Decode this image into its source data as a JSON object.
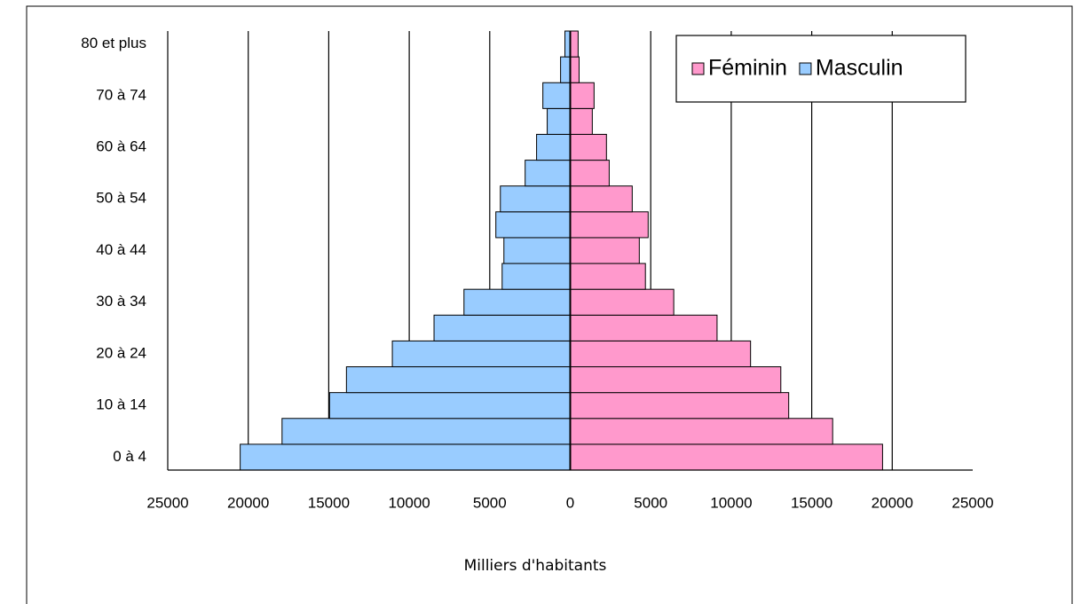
{
  "chart_data": {
    "type": "pyramid",
    "categories": [
      "0 à 4",
      null,
      "10 à 14",
      null,
      "20 à 24",
      null,
      "30 à 34",
      null,
      "40 à 44",
      null,
      "50 à 54",
      null,
      "60 à 64",
      null,
      "70 à 74",
      null,
      "80 et plus"
    ],
    "series": [
      {
        "name": "Féminin",
        "color": "#ff99cc",
        "values": [
          19400,
          16300,
          13570,
          13080,
          11200,
          9120,
          6430,
          4670,
          4290,
          4840,
          3850,
          2420,
          2250,
          1370,
          1480,
          550,
          490
        ]
      },
      {
        "name": "Masculin",
        "color": "#99ccff",
        "values": [
          -20500,
          -17900,
          -14950,
          -13900,
          -11050,
          -8460,
          -6600,
          -4230,
          -4120,
          -4620,
          -4340,
          -2800,
          -2090,
          -1430,
          -1700,
          -600,
          -330
        ]
      }
    ],
    "xlabel": "Milliers d'habitants",
    "xlim": [
      -25000,
      25000
    ],
    "xticks": [
      {
        "value": -25000,
        "label": "25000"
      },
      {
        "value": -20000,
        "label": "20000"
      },
      {
        "value": -15000,
        "label": "15000"
      },
      {
        "value": -10000,
        "label": "10000"
      },
      {
        "value": -5000,
        "label": "5000"
      },
      0,
      5000,
      10000,
      15000,
      20000,
      25000
    ],
    "grid": true,
    "legend": "upper right"
  }
}
